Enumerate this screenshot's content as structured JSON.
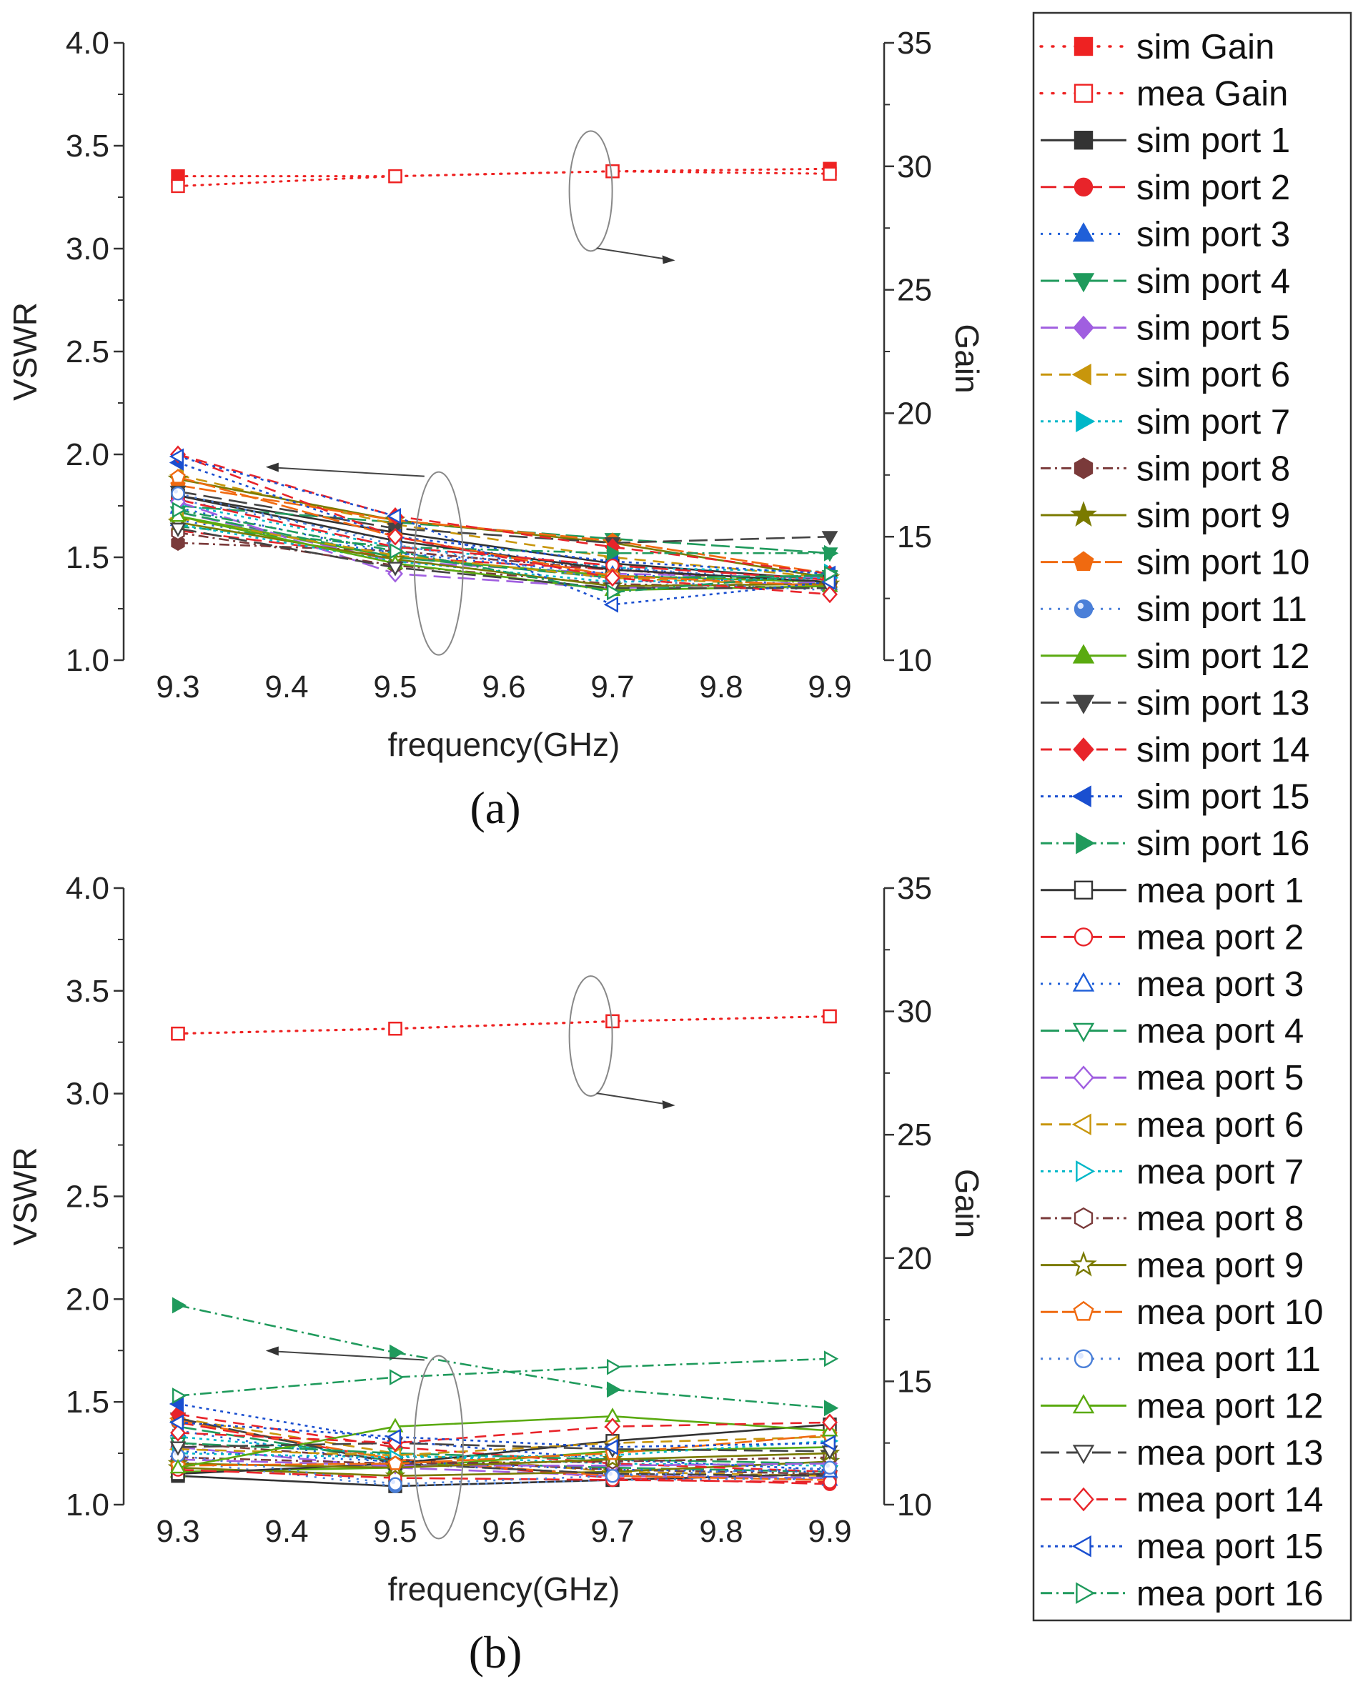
{
  "chart_data": [
    {
      "type": "line",
      "panel": "(a)",
      "caption": "(a)",
      "xlabel": "frequency(GHz)",
      "ylabel": "VSWR",
      "y2label": "Gain",
      "x": [
        9.3,
        9.5,
        9.7,
        9.9
      ],
      "xlim": [
        9.25,
        9.95
      ],
      "ylim": [
        1.0,
        4.0
      ],
      "y2lim": [
        10,
        35
      ],
      "xticks": [
        "9.3",
        "9.4",
        "9.5",
        "9.6",
        "9.7",
        "9.8",
        "9.9"
      ],
      "yticks": [
        "1.0",
        "1.5",
        "2.0",
        "2.5",
        "3.0",
        "3.5",
        "4.0"
      ],
      "y2ticks": [
        "10",
        "15",
        "20",
        "25",
        "30",
        "35"
      ],
      "gain_series": [
        {
          "name": "sim Gain",
          "axis": "right",
          "values": [
            29.6,
            29.6,
            29.8,
            29.9
          ]
        },
        {
          "name": "mea Gain",
          "axis": "right",
          "values": [
            29.2,
            29.6,
            29.8,
            29.7
          ]
        }
      ],
      "series": [
        {
          "name": "sim port 1",
          "values": [
            1.8,
            1.62,
            1.47,
            1.39
          ]
        },
        {
          "name": "sim port 2",
          "values": [
            1.63,
            1.5,
            1.44,
            1.38
          ]
        },
        {
          "name": "sim port 3",
          "values": [
            1.68,
            1.52,
            1.45,
            1.37
          ]
        },
        {
          "name": "sim port 4",
          "values": [
            1.75,
            1.67,
            1.59,
            1.52
          ]
        },
        {
          "name": "sim port 5",
          "values": [
            1.72,
            1.48,
            1.42,
            1.4
          ]
        },
        {
          "name": "sim port 6",
          "values": [
            1.9,
            1.66,
            1.5,
            1.4
          ]
        },
        {
          "name": "sim port 7",
          "values": [
            1.76,
            1.55,
            1.45,
            1.43
          ]
        },
        {
          "name": "sim port 8",
          "values": [
            1.57,
            1.53,
            1.44,
            1.37
          ]
        },
        {
          "name": "sim port 9",
          "values": [
            1.88,
            1.68,
            1.57,
            1.4
          ]
        },
        {
          "name": "sim port 10",
          "values": [
            1.85,
            1.68,
            1.58,
            1.42
          ]
        },
        {
          "name": "sim port 11",
          "values": [
            1.78,
            1.58,
            1.45,
            1.38
          ]
        },
        {
          "name": "sim port 12",
          "values": [
            1.7,
            1.5,
            1.41,
            1.38
          ]
        },
        {
          "name": "sim port 13",
          "values": [
            1.82,
            1.64,
            1.57,
            1.6
          ]
        },
        {
          "name": "sim port 14",
          "values": [
            2.0,
            1.7,
            1.55,
            1.42
          ]
        },
        {
          "name": "sim port 15",
          "values": [
            1.96,
            1.6,
            1.48,
            1.42
          ]
        },
        {
          "name": "sim port 16",
          "values": [
            1.65,
            1.55,
            1.52,
            1.52
          ]
        },
        {
          "name": "mea port 1",
          "values": [
            1.8,
            1.58,
            1.44,
            1.38
          ]
        },
        {
          "name": "mea port 2",
          "values": [
            1.78,
            1.55,
            1.46,
            1.39
          ]
        },
        {
          "name": "mea port 3",
          "values": [
            1.74,
            1.52,
            1.42,
            1.36
          ]
        },
        {
          "name": "mea port 4",
          "values": [
            1.72,
            1.5,
            1.4,
            1.41
          ]
        },
        {
          "name": "mea port 5",
          "values": [
            1.77,
            1.42,
            1.35,
            1.38
          ]
        },
        {
          "name": "mea port 6",
          "values": [
            1.69,
            1.51,
            1.4,
            1.36
          ]
        },
        {
          "name": "mea port 7",
          "values": [
            1.66,
            1.48,
            1.38,
            1.4
          ]
        },
        {
          "name": "mea port 8",
          "values": [
            1.62,
            1.46,
            1.37,
            1.35
          ]
        },
        {
          "name": "mea port 9",
          "values": [
            1.67,
            1.49,
            1.36,
            1.37
          ]
        },
        {
          "name": "mea port 10",
          "values": [
            1.89,
            1.6,
            1.41,
            1.36
          ]
        },
        {
          "name": "mea port 11",
          "values": [
            1.81,
            1.56,
            1.39,
            1.34
          ]
        },
        {
          "name": "mea port 12",
          "values": [
            1.7,
            1.47,
            1.34,
            1.36
          ]
        },
        {
          "name": "mea port 13",
          "values": [
            1.64,
            1.45,
            1.35,
            1.35
          ]
        },
        {
          "name": "mea port 14",
          "values": [
            2.0,
            1.6,
            1.4,
            1.32
          ]
        },
        {
          "name": "mea port 15",
          "values": [
            1.99,
            1.7,
            1.27,
            1.38
          ]
        },
        {
          "name": "mea port 16",
          "values": [
            1.73,
            1.53,
            1.33,
            1.42
          ]
        }
      ]
    },
    {
      "type": "line",
      "panel": "(b)",
      "caption": "(b)",
      "xlabel": "frequency(GHz)",
      "ylabel": "VSWR",
      "y2label": "Gain",
      "x": [
        9.3,
        9.5,
        9.7,
        9.9
      ],
      "xlim": [
        9.25,
        9.95
      ],
      "ylim": [
        1.0,
        4.0
      ],
      "y2lim": [
        10,
        35
      ],
      "xticks": [
        "9.3",
        "9.4",
        "9.5",
        "9.6",
        "9.7",
        "9.8",
        "9.9"
      ],
      "yticks": [
        "1.0",
        "1.5",
        "2.0",
        "2.5",
        "3.0",
        "3.5",
        "4.0"
      ],
      "y2ticks": [
        "10",
        "15",
        "20",
        "25",
        "30",
        "35"
      ],
      "gain_series": [
        {
          "name": "sim Gain",
          "axis": "right",
          "values": [
            29.1,
            29.3,
            29.6,
            29.8
          ]
        },
        {
          "name": "mea Gain",
          "axis": "right",
          "values": [
            29.1,
            29.3,
            29.6,
            29.8
          ]
        }
      ],
      "series": [
        {
          "name": "sim port 1",
          "values": [
            1.14,
            1.09,
            1.12,
            1.15
          ]
        },
        {
          "name": "sim port 2",
          "values": [
            1.4,
            1.22,
            1.13,
            1.1
          ]
        },
        {
          "name": "sim port 3",
          "values": [
            1.36,
            1.2,
            1.15,
            1.12
          ]
        },
        {
          "name": "sim port 4",
          "values": [
            1.38,
            1.21,
            1.18,
            1.16
          ]
        },
        {
          "name": "sim port 5",
          "values": [
            1.28,
            1.18,
            1.14,
            1.13
          ]
        },
        {
          "name": "sim port 6",
          "values": [
            1.42,
            1.25,
            1.16,
            1.14
          ]
        },
        {
          "name": "sim port 7",
          "values": [
            1.33,
            1.24,
            1.2,
            1.19
          ]
        },
        {
          "name": "sim port 8",
          "values": [
            1.3,
            1.22,
            1.17,
            1.15
          ]
        },
        {
          "name": "sim port 9",
          "values": [
            1.18,
            1.14,
            1.16,
            1.21
          ]
        },
        {
          "name": "sim port 10",
          "values": [
            1.41,
            1.22,
            1.14,
            1.12
          ]
        },
        {
          "name": "sim port 11",
          "values": [
            1.21,
            1.09,
            1.12,
            1.13
          ]
        },
        {
          "name": "sim port 12",
          "values": [
            1.16,
            1.18,
            1.26,
            1.28
          ]
        },
        {
          "name": "sim port 13",
          "values": [
            1.42,
            1.2,
            1.15,
            1.14
          ]
        },
        {
          "name": "sim port 14",
          "values": [
            1.44,
            1.28,
            1.2,
            1.16
          ]
        },
        {
          "name": "sim port 15",
          "values": [
            1.49,
            1.31,
            1.22,
            1.17
          ]
        },
        {
          "name": "sim port 16",
          "values": [
            1.97,
            1.74,
            1.56,
            1.47
          ]
        },
        {
          "name": "mea port 1",
          "values": [
            1.15,
            1.2,
            1.31,
            1.39
          ]
        },
        {
          "name": "mea port 2",
          "values": [
            1.17,
            1.13,
            1.12,
            1.11
          ]
        },
        {
          "name": "mea port 3",
          "values": [
            1.26,
            1.21,
            1.17,
            1.16
          ]
        },
        {
          "name": "mea port 4",
          "values": [
            1.3,
            1.25,
            1.22,
            1.2
          ]
        },
        {
          "name": "mea port 5",
          "values": [
            1.22,
            1.19,
            1.19,
            1.2
          ]
        },
        {
          "name": "mea port 6",
          "values": [
            1.27,
            1.24,
            1.3,
            1.33
          ]
        },
        {
          "name": "mea port 7",
          "values": [
            1.25,
            1.23,
            1.24,
            1.31
          ]
        },
        {
          "name": "mea port 8",
          "values": [
            1.23,
            1.2,
            1.21,
            1.23
          ]
        },
        {
          "name": "mea port 9",
          "values": [
            1.2,
            1.18,
            1.22,
            1.25
          ]
        },
        {
          "name": "mea port 10",
          "values": [
            1.19,
            1.2,
            1.25,
            1.34
          ]
        },
        {
          "name": "mea port 11",
          "values": [
            1.24,
            1.1,
            1.14,
            1.18
          ]
        },
        {
          "name": "mea port 12",
          "values": [
            1.18,
            1.38,
            1.43,
            1.36
          ]
        },
        {
          "name": "mea port 13",
          "values": [
            1.28,
            1.3,
            1.27,
            1.26
          ]
        },
        {
          "name": "mea port 14",
          "values": [
            1.35,
            1.3,
            1.38,
            1.4
          ]
        },
        {
          "name": "mea port 15",
          "values": [
            1.4,
            1.33,
            1.28,
            1.3
          ]
        },
        {
          "name": "mea port 16",
          "values": [
            1.53,
            1.62,
            1.67,
            1.71
          ]
        }
      ]
    }
  ],
  "legend": [
    {
      "name": "sim Gain",
      "color": "#ee2222",
      "dash": "2,10",
      "marker": "square",
      "filled": true
    },
    {
      "name": "mea Gain",
      "color": "#ee2222",
      "dash": "2,10",
      "marker": "square",
      "filled": false
    },
    {
      "name": "sim port 1",
      "color": "#333333",
      "dash": "",
      "marker": "square",
      "filled": true
    },
    {
      "name": "sim port 2",
      "color": "#e8242a",
      "dash": "22,10",
      "marker": "circle",
      "filled": true
    },
    {
      "name": "sim port 3",
      "color": "#1f5fd8",
      "dash": "3,9",
      "marker": "triangle-up",
      "filled": true
    },
    {
      "name": "sim port 4",
      "color": "#1f9a5c",
      "dash": "26,8",
      "marker": "triangle-down",
      "filled": true
    },
    {
      "name": "sim port 5",
      "color": "#a05ee0",
      "dash": "24,10",
      "marker": "diamond",
      "filled": true
    },
    {
      "name": "sim port 6",
      "color": "#c8960c",
      "dash": "16,10",
      "marker": "triangle-left",
      "filled": true
    },
    {
      "name": "sim port 7",
      "color": "#00b7c8",
      "dash": "4,6",
      "marker": "triangle-right",
      "filled": true
    },
    {
      "name": "sim port 8",
      "color": "#7a3a3a",
      "dash": "14,6,3,6",
      "marker": "hexagon",
      "filled": true
    },
    {
      "name": "sim port 9",
      "color": "#7a7a00",
      "dash": "",
      "marker": "star",
      "filled": true
    },
    {
      "name": "sim port 10",
      "color": "#f06a10",
      "dash": "24,6",
      "marker": "pentagon",
      "filled": true
    },
    {
      "name": "sim port 11",
      "color": "#4a7fd8",
      "dash": "3,9",
      "marker": "sphere",
      "filled": true
    },
    {
      "name": "sim port 12",
      "color": "#5aaa10",
      "dash": "",
      "marker": "triangle-up",
      "filled": true
    },
    {
      "name": "sim port 13",
      "color": "#444444",
      "dash": "26,10",
      "marker": "triangle-down",
      "filled": true
    },
    {
      "name": "sim port 14",
      "color": "#e8242a",
      "dash": "16,10",
      "marker": "diamond",
      "filled": true
    },
    {
      "name": "sim port 15",
      "color": "#1a4fd0",
      "dash": "4,6",
      "marker": "triangle-left",
      "filled": true
    },
    {
      "name": "sim port 16",
      "color": "#1f9a5c",
      "dash": "16,6,3,6",
      "marker": "triangle-right",
      "filled": true
    },
    {
      "name": "mea port 1",
      "color": "#333333",
      "dash": "",
      "marker": "square",
      "filled": false
    },
    {
      "name": "mea port 2",
      "color": "#e8242a",
      "dash": "22,10",
      "marker": "circle",
      "filled": false
    },
    {
      "name": "mea port 3",
      "color": "#1f5fd8",
      "dash": "3,9",
      "marker": "triangle-up",
      "filled": false
    },
    {
      "name": "mea port 4",
      "color": "#1f9a5c",
      "dash": "26,8",
      "marker": "triangle-down",
      "filled": false
    },
    {
      "name": "mea port 5",
      "color": "#a05ee0",
      "dash": "24,10",
      "marker": "diamond",
      "filled": false
    },
    {
      "name": "mea port 6",
      "color": "#c8960c",
      "dash": "16,10",
      "marker": "triangle-left",
      "filled": false
    },
    {
      "name": "mea port 7",
      "color": "#00b7c8",
      "dash": "4,6",
      "marker": "triangle-right",
      "filled": false
    },
    {
      "name": "mea port 8",
      "color": "#7a3a3a",
      "dash": "14,6,3,6",
      "marker": "hexagon",
      "filled": false
    },
    {
      "name": "mea port 9",
      "color": "#7a7a00",
      "dash": "",
      "marker": "star",
      "filled": false
    },
    {
      "name": "mea port 10",
      "color": "#f06a10",
      "dash": "24,6",
      "marker": "pentagon",
      "filled": false
    },
    {
      "name": "mea port 11",
      "color": "#4a7fd8",
      "dash": "3,9",
      "marker": "sphere",
      "filled": false
    },
    {
      "name": "mea port 12",
      "color": "#5aaa10",
      "dash": "",
      "marker": "triangle-up",
      "filled": false
    },
    {
      "name": "mea port 13",
      "color": "#444444",
      "dash": "26,10",
      "marker": "triangle-down",
      "filled": false
    },
    {
      "name": "mea port 14",
      "color": "#e8242a",
      "dash": "16,10",
      "marker": "diamond",
      "filled": false
    },
    {
      "name": "mea port 15",
      "color": "#1a4fd0",
      "dash": "4,6",
      "marker": "triangle-left",
      "filled": false
    },
    {
      "name": "mea port 16",
      "color": "#1f9a5c",
      "dash": "16,6,3,6",
      "marker": "triangle-right",
      "filled": false
    }
  ]
}
